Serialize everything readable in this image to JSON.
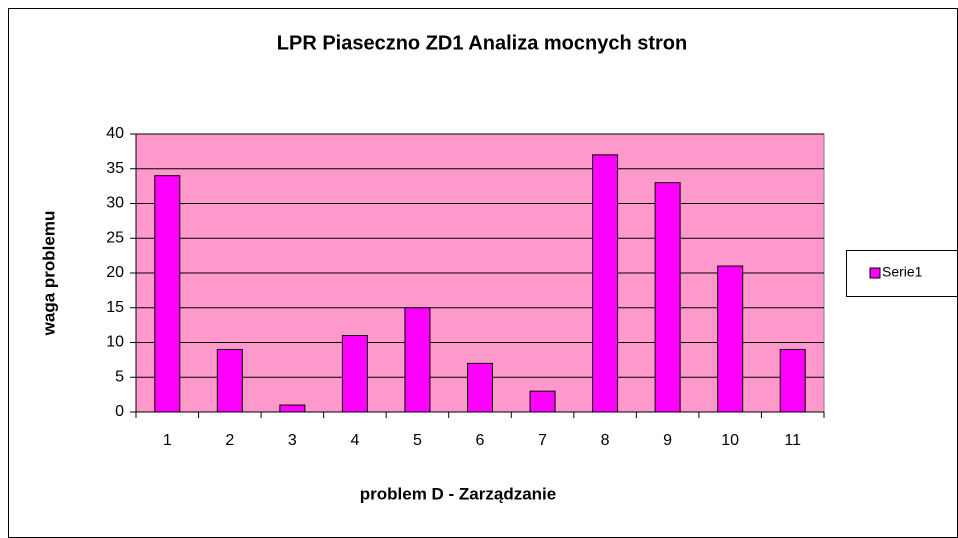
{
  "chart_data": {
    "type": "bar",
    "title": "LPR Piaseczno ZD1 Analiza mocnych stron",
    "x_label": "problem D - Zarządzanie",
    "y_label": "waga problemu",
    "categories": [
      "1",
      "2",
      "3",
      "4",
      "5",
      "6",
      "7",
      "8",
      "9",
      "10",
      "11"
    ],
    "series": [
      {
        "name": "Serie1",
        "color": "#ff00ff",
        "values": [
          34,
          9,
          1,
          11,
          15,
          7,
          3,
          37,
          33,
          21,
          9
        ]
      }
    ],
    "ylim": [
      0,
      40
    ],
    "yticks": [
      0,
      5,
      10,
      15,
      20,
      25,
      30,
      35,
      40
    ],
    "grid": true,
    "plot_background": "#ff99cc",
    "legend": "right"
  }
}
